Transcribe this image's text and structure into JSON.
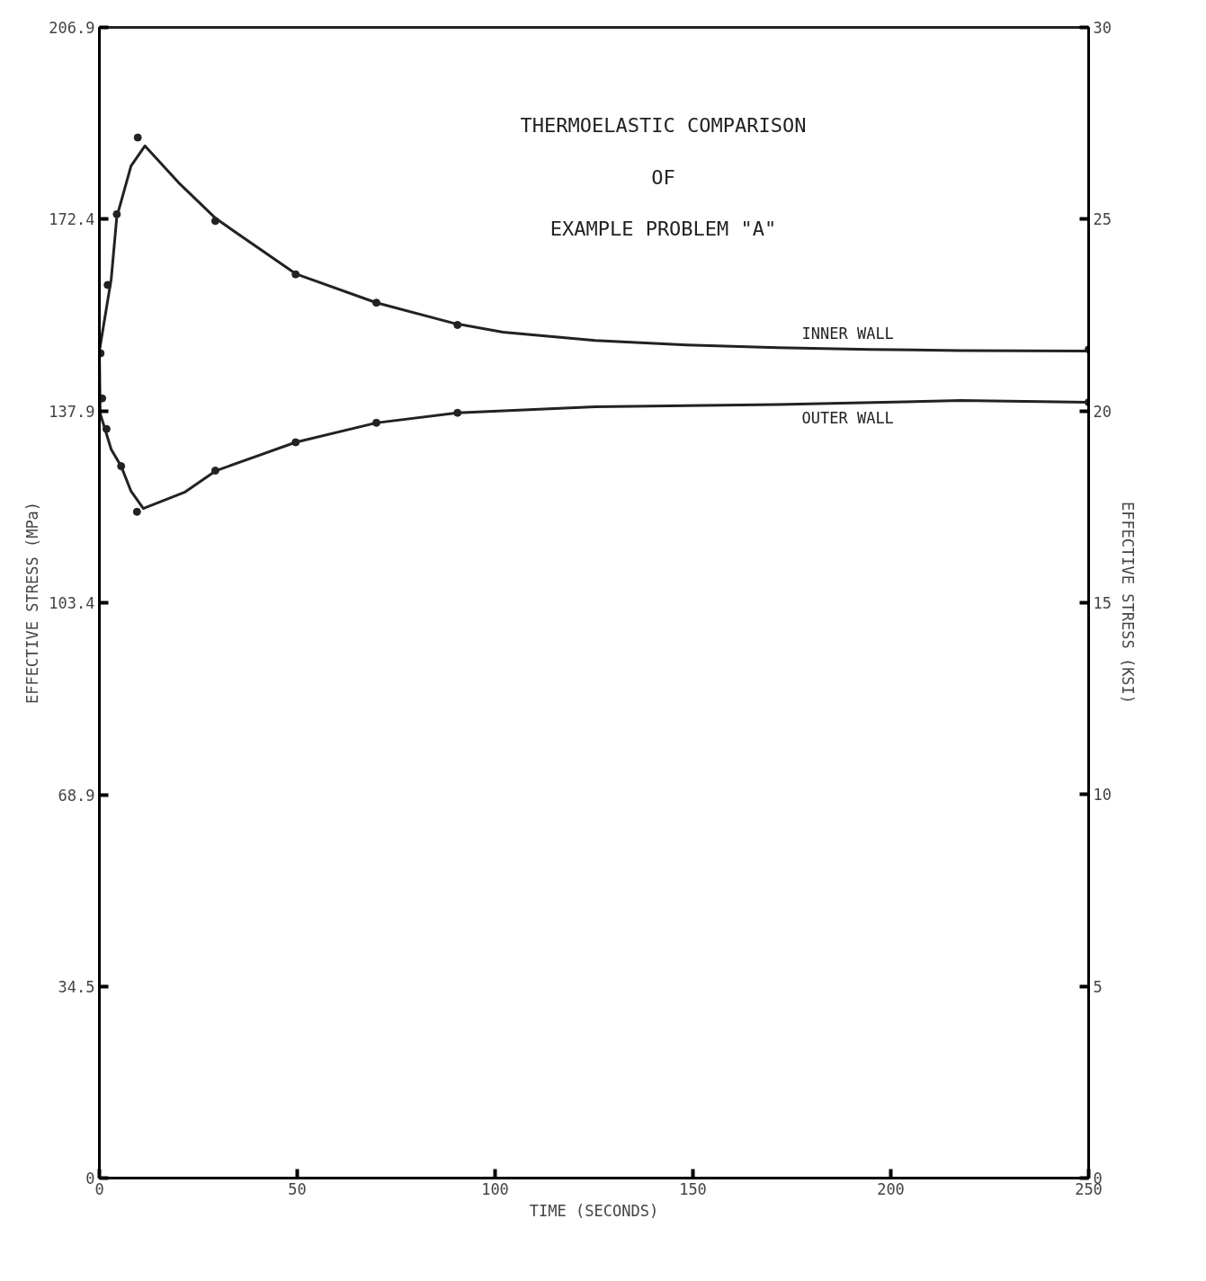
{
  "chart_data": {
    "type": "line",
    "title": "THERMOELASTIC COMPARISON\nOF\nEXAMPLE PROBLEM \"A\"",
    "xlabel": "TIME (SECONDS)",
    "ylabel": "EFFECTIVE STRESS (MPa)",
    "y2label": "EFFECTIVE STRESS (KSI)",
    "series": [
      {
        "color": "#222222",
        "x": [
          0,
          3,
          4.4,
          8,
          11.5,
          20,
          29.5,
          49.6,
          70,
          89.6,
          102,
          125.3,
          148.4,
          171.5,
          194.6,
          217.7,
          250
        ],
        "values": [
          148.7,
          161.7,
          172.8,
          182,
          185.6,
          179,
          172.5,
          162.6,
          157.4,
          153.7,
          152.1,
          150.6,
          149.8,
          149.3,
          149,
          148.8,
          148.7
        ]
      },
      {
        "color": "#222222",
        "x": [
          0,
          0.2,
          3,
          5.5,
          8,
          11.1,
          21.5,
          29.5,
          49.6,
          70,
          90.5,
          125.3,
          171.5,
          217.7,
          250
        ],
        "values": [
          148.7,
          137.5,
          131,
          128,
          123.5,
          120.4,
          123.3,
          127.2,
          132.3,
          135.8,
          137.6,
          138.7,
          139.1,
          139.8,
          139.5
        ]
      },
      {
        "type": "scatter",
        "marker": "circle",
        "color": "#222222",
        "x": [
          0.3,
          2.1,
          4.4,
          9.7,
          29.3,
          49.6,
          70,
          90.5,
          250
        ],
        "values": [
          148.3,
          160.6,
          173.3,
          187.1,
          172.1,
          162.5,
          157.4,
          153.4,
          149
        ]
      },
      {
        "type": "scatter",
        "marker": "circle",
        "color": "#222222",
        "x": [
          0.7,
          1.8,
          5.5,
          9.5,
          29.3,
          49.6,
          70,
          90.5,
          250
        ],
        "values": [
          140.2,
          134.7,
          128,
          119.8,
          127.2,
          132.3,
          135.8,
          137.6,
          139.5
        ]
      }
    ],
    "annotations": [
      "INNER WALL",
      "OUTER WALL"
    ],
    "xlim": [
      0,
      250
    ],
    "xticks": [
      0,
      50,
      100,
      150,
      200,
      250
    ],
    "ylim": [
      0,
      206.9
    ],
    "yticks": [
      0,
      34.5,
      68.9,
      103.4,
      137.9,
      172.4,
      206.9
    ],
    "y2lim": [
      0,
      30
    ],
    "y2ticks": [
      0,
      5,
      10,
      15,
      20,
      25,
      30
    ],
    "grid": false,
    "line_style": "solid"
  }
}
